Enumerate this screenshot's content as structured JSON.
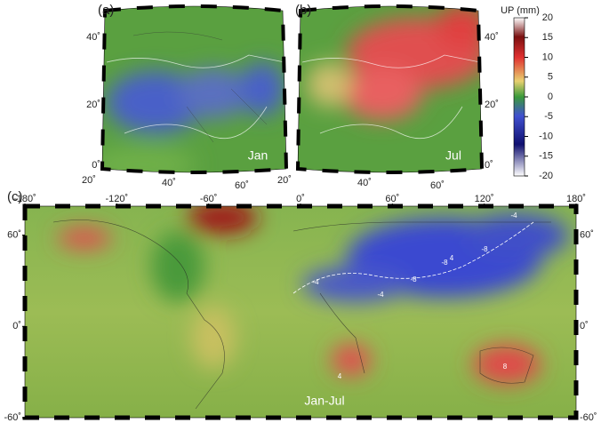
{
  "panels": [
    {
      "label": "(a)",
      "month": "Jan",
      "lat_ticks": [
        {
          "value": 40,
          "label": "40˚"
        },
        {
          "value": 20,
          "label": "20˚"
        },
        {
          "value": 0,
          "label": "0˚"
        }
      ],
      "lon_ticks": [
        {
          "value": 20,
          "label": "20˚"
        },
        {
          "value": 40,
          "label": "40˚"
        },
        {
          "value": 60,
          "label": "60˚"
        }
      ]
    },
    {
      "label": "(b)",
      "month": "Jul",
      "lat_ticks": [
        {
          "value": 40,
          "label": "40˚"
        },
        {
          "value": 20,
          "label": "20˚"
        },
        {
          "value": 0,
          "label": "0˚"
        }
      ],
      "lon_ticks": [
        {
          "value": 20,
          "label": "20˚"
        },
        {
          "value": 40,
          "label": "40˚"
        },
        {
          "value": 60,
          "label": "60˚"
        }
      ]
    },
    {
      "label": "(c)",
      "month": "Jan-Jul",
      "lonlim": [
        -180,
        180
      ],
      "latlim": [
        -60,
        79
      ],
      "lon_ticks": [
        {
          "value": -180,
          "label": "-180˚"
        },
        {
          "value": -120,
          "label": "-120˚"
        },
        {
          "value": -60,
          "label": "-60˚"
        },
        {
          "value": 0,
          "label": "0˚"
        },
        {
          "value": 60,
          "label": "60˚"
        },
        {
          "value": 120,
          "label": "120˚"
        },
        {
          "value": 180,
          "label": "180˚"
        }
      ],
      "lat_ticks": [
        {
          "value": 60,
          "label": "60˚"
        },
        {
          "value": 0,
          "label": "0˚"
        },
        {
          "value": -60,
          "label": "-60˚"
        }
      ],
      "contour_labels": [
        "-4",
        "-8",
        "-8",
        "-8",
        "-4",
        "-4",
        "8",
        "4",
        "4"
      ]
    }
  ],
  "colorbar": {
    "title": "UP (mm)",
    "lim": [
      -20,
      20
    ],
    "ticks": [
      20,
      15,
      10,
      5,
      0,
      -5,
      -10,
      -15,
      -20
    ]
  }
}
